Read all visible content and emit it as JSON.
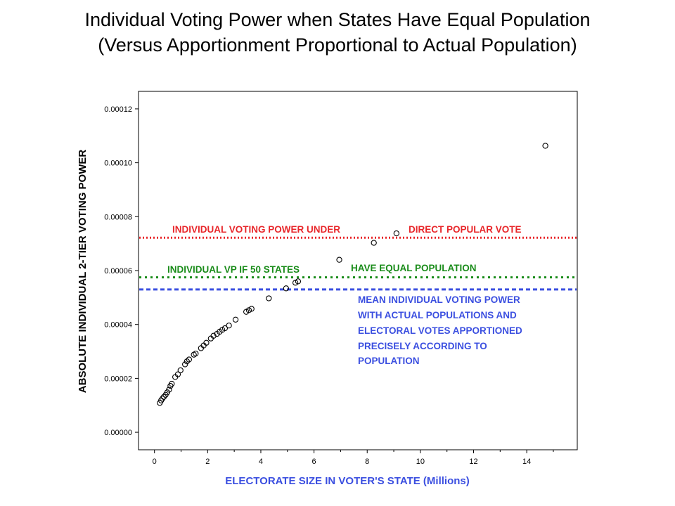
{
  "title_line1": "Individual Voting Power when States Have Equal Population",
  "title_line2": "(Versus Apportionment Proportional to Actual Population)",
  "chart_data": {
    "type": "scatter",
    "title": "Individual Voting Power when States Have Equal Population (Versus Apportionment Proportional to Actual Population)",
    "xlabel": "ELECTORATE SIZE IN VOTER'S STATE (Millions)",
    "ylabel": "ABSOLUTE INDIVIDUAL 2-TIER VOTING POWER",
    "xlim": [
      -0.6,
      15.9
    ],
    "ylim": [
      -6.5e-06,
      0.0001265
    ],
    "x_ticks": [
      0,
      2,
      4,
      6,
      8,
      10,
      12,
      14
    ],
    "x_tick_labels": [
      "0",
      "2",
      "4",
      "6",
      "8",
      "10",
      "12",
      "14"
    ],
    "y_ticks": [
      0,
      2e-05,
      4e-05,
      6e-05,
      8e-05,
      0.0001,
      0.00012
    ],
    "y_tick_labels": [
      "0.00000",
      "0.00002",
      "0.00004",
      "0.00006",
      "0.00008",
      "0.00010",
      "0.00012"
    ],
    "grid": false,
    "point_color": "#000000",
    "points": [
      {
        "x": 0.2,
        "y": 1.09e-05
      },
      {
        "x": 0.25,
        "y": 1.18e-05
      },
      {
        "x": 0.3,
        "y": 1.25e-05
      },
      {
        "x": 0.35,
        "y": 1.31e-05
      },
      {
        "x": 0.42,
        "y": 1.39e-05
      },
      {
        "x": 0.48,
        "y": 1.48e-05
      },
      {
        "x": 0.55,
        "y": 1.58e-05
      },
      {
        "x": 0.6,
        "y": 1.72e-05
      },
      {
        "x": 0.65,
        "y": 1.8e-05
      },
      {
        "x": 0.78,
        "y": 2.05e-05
      },
      {
        "x": 0.88,
        "y": 2.15e-05
      },
      {
        "x": 0.98,
        "y": 2.3e-05
      },
      {
        "x": 1.15,
        "y": 2.52e-05
      },
      {
        "x": 1.22,
        "y": 2.63e-05
      },
      {
        "x": 1.3,
        "y": 2.7e-05
      },
      {
        "x": 1.48,
        "y": 2.88e-05
      },
      {
        "x": 1.55,
        "y": 2.92e-05
      },
      {
        "x": 1.75,
        "y": 3.12e-05
      },
      {
        "x": 1.85,
        "y": 3.22e-05
      },
      {
        "x": 1.95,
        "y": 3.32e-05
      },
      {
        "x": 2.12,
        "y": 3.48e-05
      },
      {
        "x": 2.22,
        "y": 3.58e-05
      },
      {
        "x": 2.35,
        "y": 3.65e-05
      },
      {
        "x": 2.45,
        "y": 3.73e-05
      },
      {
        "x": 2.55,
        "y": 3.8e-05
      },
      {
        "x": 2.65,
        "y": 3.86e-05
      },
      {
        "x": 2.8,
        "y": 3.96e-05
      },
      {
        "x": 3.05,
        "y": 4.18e-05
      },
      {
        "x": 3.45,
        "y": 4.47e-05
      },
      {
        "x": 3.55,
        "y": 4.53e-05
      },
      {
        "x": 3.65,
        "y": 4.58e-05
      },
      {
        "x": 4.3,
        "y": 4.97e-05
      },
      {
        "x": 4.95,
        "y": 5.34e-05
      },
      {
        "x": 5.3,
        "y": 5.55e-05
      },
      {
        "x": 5.4,
        "y": 5.6e-05
      },
      {
        "x": 6.95,
        "y": 6.4e-05
      },
      {
        "x": 8.25,
        "y": 7.03e-05
      },
      {
        "x": 9.1,
        "y": 7.38e-05
      },
      {
        "x": 14.7,
        "y": 0.0001063
      }
    ],
    "reference_lines": [
      {
        "y": 7.22e-05,
        "color": "#e8262a",
        "labels": [
          "INDIVIDUAL VOTING POWER UNDER",
          "DIRECT POPULAR VOTE"
        ]
      },
      {
        "y": 5.75e-05,
        "color": "#1a8c1a",
        "labels": [
          "INDIVIDUAL VP IF 50 STATES",
          "HAVE EQUAL POPULATION"
        ]
      },
      {
        "y": 5.3e-05,
        "color": "#3b4fe0",
        "labels": [
          "MEAN INDIVIDUAL VOTING POWER",
          "WITH ACTUAL POPULATIONS AND",
          "ELECTORAL VOTES APPORTIONED",
          "PRECISELY ACCORDING TO",
          "POPULATION"
        ]
      }
    ]
  },
  "colors": {
    "red_line": "#e8262a",
    "green_line": "#1a8c1a",
    "blue_line": "#3b4fe0",
    "axis_title_x": "#3b4fe0",
    "axis_title_y": "#000000"
  }
}
